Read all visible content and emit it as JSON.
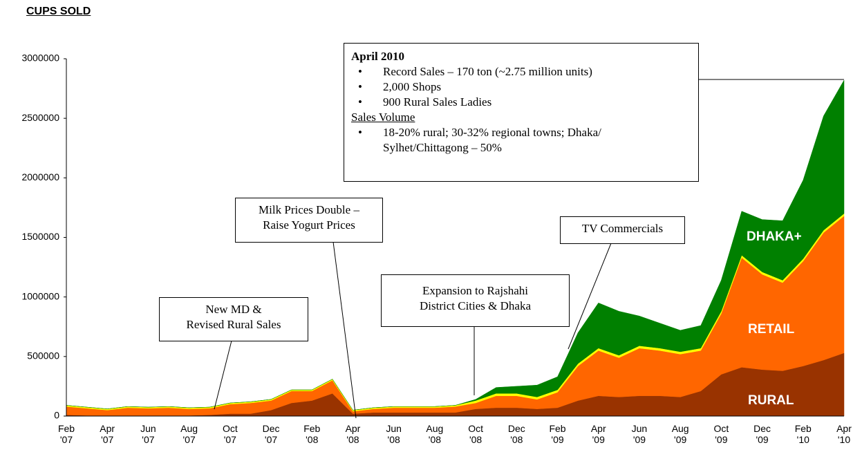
{
  "chart_data": {
    "type": "stacked-area",
    "title": "CUPS SOLD",
    "categories": [
      "Feb\n'07",
      null,
      "Apr\n'07",
      null,
      "Jun\n'07",
      null,
      "Aug\n'07",
      null,
      "Oct\n'07",
      null,
      "Dec\n'07",
      null,
      "Feb\n'08",
      null,
      "Apr\n'08",
      null,
      "Jun\n'08",
      null,
      "Aug\n'08",
      null,
      "Oct\n'08",
      null,
      "Dec\n'08",
      null,
      "Feb\n'09",
      null,
      "Apr\n'09",
      null,
      "Jun\n'09",
      null,
      "Aug\n'09",
      null,
      "Oct\n'09",
      null,
      "Dec\n'09",
      null,
      "Feb\n'10",
      null,
      "Apr\n'10"
    ],
    "series": [
      {
        "name": "RURAL",
        "color": "#993300",
        "values": [
          10000,
          5000,
          5000,
          5000,
          5000,
          5000,
          5000,
          10000,
          20000,
          20000,
          50000,
          110000,
          130000,
          190000,
          20000,
          30000,
          30000,
          30000,
          30000,
          30000,
          60000,
          70000,
          70000,
          60000,
          70000,
          130000,
          170000,
          160000,
          170000,
          170000,
          160000,
          210000,
          350000,
          410000,
          390000,
          380000,
          420000,
          470000,
          530000
        ]
      },
      {
        "name": "RETAIL",
        "color": "#ff6600",
        "values": [
          70000,
          60000,
          45000,
          65000,
          60000,
          65000,
          55000,
          55000,
          80000,
          90000,
          80000,
          100000,
          80000,
          110000,
          20000,
          30000,
          40000,
          40000,
          40000,
          50000,
          50000,
          100000,
          100000,
          80000,
          130000,
          290000,
          380000,
          330000,
          400000,
          380000,
          360000,
          340000,
          510000,
          920000,
          800000,
          740000,
          880000,
          1070000,
          1150000
        ]
      },
      {
        "name": null,
        "color": "#ffff00",
        "values": [
          10000,
          10000,
          10000,
          10000,
          10000,
          10000,
          10000,
          10000,
          10000,
          10000,
          10000,
          10000,
          10000,
          10000,
          10000,
          10000,
          10000,
          10000,
          10000,
          10000,
          20000,
          20000,
          20000,
          20000,
          20000,
          20000,
          20000,
          20000,
          20000,
          20000,
          20000,
          20000,
          20000,
          20000,
          20000,
          20000,
          20000,
          20000,
          20000
        ]
      },
      {
        "name": "DHAKA+",
        "color": "#008000",
        "values": [
          0,
          0,
          0,
          0,
          0,
          0,
          0,
          0,
          0,
          0,
          0,
          0,
          0,
          0,
          0,
          0,
          0,
          0,
          0,
          0,
          10000,
          50000,
          60000,
          100000,
          110000,
          260000,
          380000,
          370000,
          250000,
          210000,
          180000,
          190000,
          260000,
          370000,
          440000,
          500000,
          660000,
          960000,
          1120000
        ]
      }
    ],
    "ylim": [
      0,
      3000000
    ],
    "yticks": [
      0,
      500000,
      1000000,
      1500000,
      2000000,
      2500000,
      3000000
    ],
    "grid": false,
    "annotations": [
      {
        "heading": "April 2010",
        "bullets": [
          "Record Sales – 170 ton (~2.75 million units)",
          "2,000 Shops",
          "900 Rural Sales Ladies"
        ],
        "subheading": "Sales Volume",
        "sub_bullets": [
          "18-20% rural; 30-32% regional towns; Dhaka/ Sylhet/Chittagong – 50%"
        ]
      },
      {
        "lines": [
          "Milk Prices  Double –",
          "Raise  Yogurt Prices"
        ]
      },
      {
        "lines": [
          "New MD &",
          "Revised Rural Sales"
        ]
      },
      {
        "lines": [
          "Expansion to Rajshahi",
          "District Cities & Dhaka"
        ]
      },
      {
        "lines": [
          "TV Commercials"
        ]
      }
    ]
  }
}
